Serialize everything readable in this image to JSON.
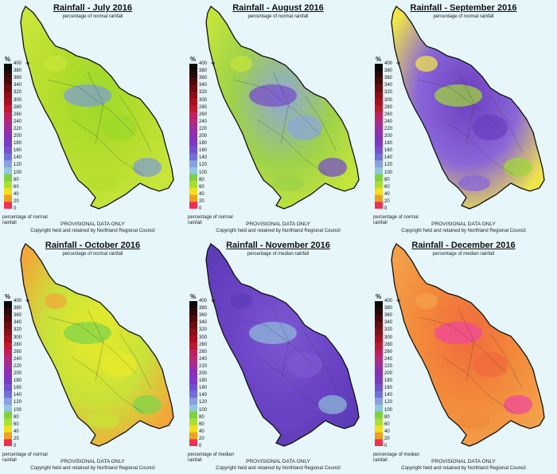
{
  "panels": [
    {
      "title": "Rainfall - July 2016",
      "subtitle": "percentage of normal rainfall",
      "legend_note": "percentage of normal rainfall",
      "palette": [
        "#b6de2e",
        "#9cd82a",
        "#7f9ed0",
        "#c8e63a"
      ]
    },
    {
      "title": "Rainfall - August 2016",
      "subtitle": "percentage of normal rainfall",
      "legend_note": "percentage of normal rainfall",
      "palette": [
        "#9fd24a",
        "#8ea6d8",
        "#7a4fc8",
        "#c3e53a"
      ]
    },
    {
      "title": "Rainfall - September 2016",
      "subtitle": "percentage of normal rainfall",
      "legend_note": "percentage of normal rainfall",
      "palette": [
        "#8a66d8",
        "#6b3fc0",
        "#9fd53c",
        "#efe44a"
      ]
    },
    {
      "title": "Rainfall - October 2016",
      "subtitle": "percentage of normal rainfall",
      "legend_note": "percentage of normal rainfall",
      "palette": [
        "#c8e23a",
        "#e8ea2a",
        "#7fd44a",
        "#f2a83a"
      ]
    },
    {
      "title": "Rainfall - November 2016",
      "subtitle": "percentage of median rainfall",
      "legend_note": "percentage of median rainfall",
      "palette": [
        "#6b44c6",
        "#7c58d2",
        "#8eb8da",
        "#5e3cb8"
      ]
    },
    {
      "title": "Rainfall - December 2016",
      "subtitle": "percentage of median rainfall",
      "legend_note": "percentage of median rainfall",
      "palette": [
        "#f28a3a",
        "#f06a3e",
        "#f0489a",
        "#f4a04a"
      ]
    }
  ],
  "legend": {
    "unit": "%",
    "plus": "+",
    "ticks": [
      "400",
      "380",
      "360",
      "340",
      "320",
      "300",
      "280",
      "260",
      "240",
      "220",
      "200",
      "180",
      "160",
      "140",
      "120",
      "100",
      "80",
      "60",
      "40",
      "20",
      "0"
    ],
    "colors": [
      "#0a0a0a",
      "#2a0a0a",
      "#4a0a0a",
      "#6a0c10",
      "#8a1018",
      "#a81020",
      "#c01830",
      "#c02060",
      "#b02a80",
      "#9a2ea0",
      "#8830b8",
      "#7a3ac8",
      "#7450d0",
      "#7070d8",
      "#8aa0e0",
      "#90c8e0",
      "#80d040",
      "#a8e030",
      "#f0e020",
      "#f0a020",
      "#f03050"
    ]
  },
  "footer": {
    "provisional": "PROVISIONAL DATA ONLY",
    "copyright": "Copyright held and retained by Northland Regional Council"
  }
}
